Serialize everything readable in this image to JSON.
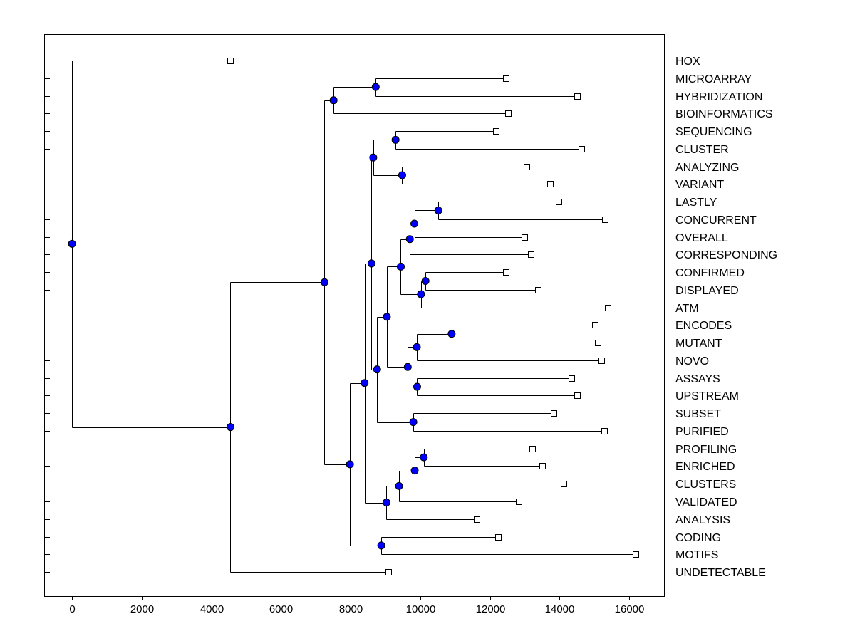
{
  "chart_data": {
    "type": "dendrogram",
    "orientation": "horizontal",
    "xlim": [
      -800,
      17000
    ],
    "xticks": [
      0,
      2000,
      4000,
      6000,
      8000,
      10000,
      12000,
      14000,
      16000
    ],
    "node_color": "#0000ff",
    "leaves": [
      {
        "name": "HOX",
        "x": 4550
      },
      {
        "name": "MICROARRAY",
        "x": 12450
      },
      {
        "name": "HYBRIDIZATION",
        "x": 14500
      },
      {
        "name": "BIOINFORMATICS",
        "x": 12520
      },
      {
        "name": "SEQUENCING",
        "x": 12180
      },
      {
        "name": "CLUSTER",
        "x": 14630
      },
      {
        "name": "ANALYZING",
        "x": 13060
      },
      {
        "name": "VARIANT",
        "x": 13730
      },
      {
        "name": "LASTLY",
        "x": 13980
      },
      {
        "name": "CONCURRENT",
        "x": 15300
      },
      {
        "name": "OVERALL",
        "x": 13000
      },
      {
        "name": "CORRESPONDING",
        "x": 13180
      },
      {
        "name": "CONFIRMED",
        "x": 12450
      },
      {
        "name": "DISPLAYED",
        "x": 13380
      },
      {
        "name": "ATM",
        "x": 15380
      },
      {
        "name": "ENCODES",
        "x": 15020
      },
      {
        "name": "MUTANT",
        "x": 15100
      },
      {
        "name": "NOVO",
        "x": 15200
      },
      {
        "name": "ASSAYS",
        "x": 14350
      },
      {
        "name": "UPSTREAM",
        "x": 14500
      },
      {
        "name": "SUBSET",
        "x": 13830
      },
      {
        "name": "PURIFIED",
        "x": 15280
      },
      {
        "name": "PROFILING",
        "x": 13220
      },
      {
        "name": "ENRICHED",
        "x": 13500
      },
      {
        "name": "CLUSTERS",
        "x": 14120
      },
      {
        "name": "VALIDATED",
        "x": 12830
      },
      {
        "name": "ANALYSIS",
        "x": 11620
      },
      {
        "name": "CODING",
        "x": 12230
      },
      {
        "name": "MOTIFS",
        "x": 16180
      },
      {
        "name": "UNDETECTABLE",
        "x": 9080
      }
    ],
    "merges": [
      {
        "x": 8720,
        "children": [
          1,
          2
        ]
      },
      {
        "x": 7510,
        "children": [
          30,
          3
        ]
      },
      {
        "x": 9290,
        "children": [
          4,
          5
        ]
      },
      {
        "x": 9480,
        "children": [
          6,
          7
        ]
      },
      {
        "x": 8650,
        "children": [
          32,
          33
        ]
      },
      {
        "x": 10520,
        "children": [
          8,
          9
        ]
      },
      {
        "x": 9830,
        "children": [
          35,
          10
        ]
      },
      {
        "x": 9700,
        "children": [
          36,
          11
        ]
      },
      {
        "x": 10150,
        "children": [
          12,
          13
        ]
      },
      {
        "x": 10020,
        "children": [
          38,
          14
        ]
      },
      {
        "x": 9440,
        "children": [
          37,
          39
        ]
      },
      {
        "x": 10900,
        "children": [
          15,
          16
        ]
      },
      {
        "x": 9900,
        "children": [
          41,
          17
        ]
      },
      {
        "x": 9910,
        "children": [
          18,
          19
        ]
      },
      {
        "x": 9640,
        "children": [
          42,
          43
        ]
      },
      {
        "x": 9040,
        "children": [
          40,
          44
        ]
      },
      {
        "x": 9800,
        "children": [
          20,
          21
        ]
      },
      {
        "x": 8760,
        "children": [
          45,
          46
        ]
      },
      {
        "x": 8600,
        "children": [
          34,
          47
        ]
      },
      {
        "x": 10100,
        "children": [
          22,
          23
        ]
      },
      {
        "x": 9840,
        "children": [
          49,
          24
        ]
      },
      {
        "x": 9390,
        "children": [
          50,
          25
        ]
      },
      {
        "x": 9030,
        "children": [
          51,
          26
        ]
      },
      {
        "x": 8400,
        "children": [
          48,
          52
        ]
      },
      {
        "x": 8880,
        "children": [
          27,
          28
        ]
      },
      {
        "x": 7980,
        "children": [
          53,
          54
        ]
      },
      {
        "x": 7250,
        "children": [
          31,
          55
        ]
      },
      {
        "x": 4550,
        "children": [
          56,
          29
        ]
      },
      {
        "x": 0,
        "children": [
          0,
          57
        ]
      }
    ]
  }
}
